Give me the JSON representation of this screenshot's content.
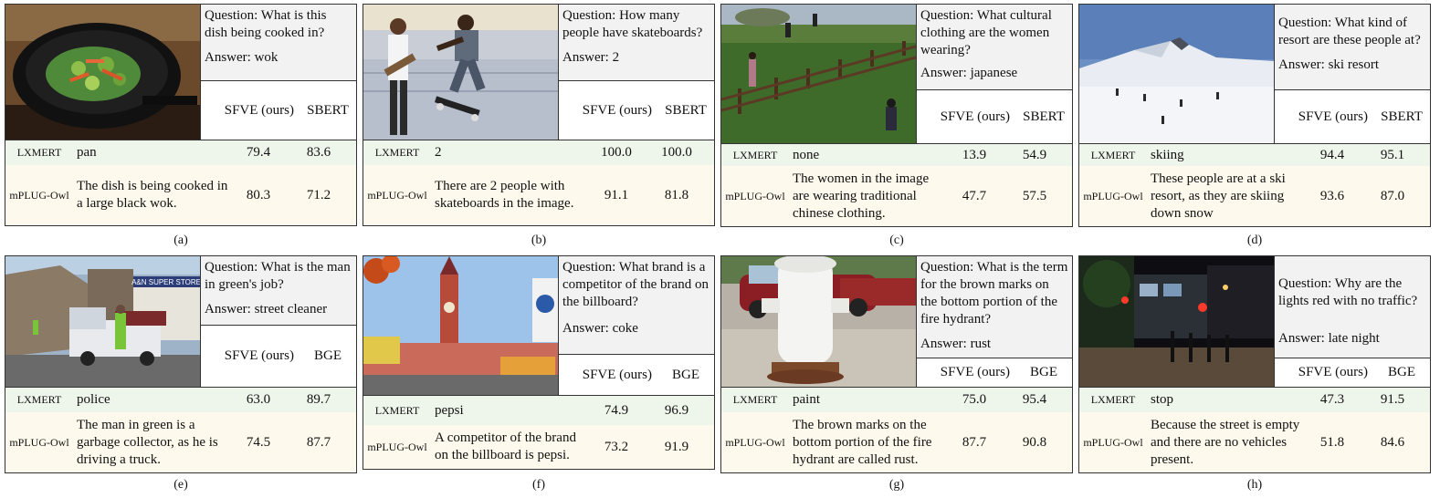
{
  "panels": [
    {
      "caption": "(a)",
      "question": "Question: What is this dish being cooked in?",
      "answer": "Answer: wok",
      "metric1": "SFVE (ours)",
      "metric2": "SBERT",
      "rows": [
        {
          "model": "LXMERT",
          "answer": "pan",
          "v1": "79.4",
          "v2": "83.6"
        },
        {
          "model": "mPLUG-Owl",
          "answer": "The dish is being cooked in a large black wok.",
          "v1": "80.3",
          "v2": "71.2"
        }
      ],
      "photo": "wok-with-vegetables-photo"
    },
    {
      "caption": "(b)",
      "question": "Question: How many people have skateboards?",
      "answer": "Answer: 2",
      "metric1": "SFVE (ours)",
      "metric2": "SBERT",
      "rows": [
        {
          "model": "LXMERT",
          "answer": "2",
          "v1": "100.0",
          "v2": "100.0"
        },
        {
          "model": "mPLUG-Owl",
          "answer": "There are 2 people with skateboards in the image.",
          "v1": "91.1",
          "v2": "81.8"
        }
      ],
      "photo": "skateboarders-photo"
    },
    {
      "caption": "(c)",
      "question": "Question: What cultural clothing are the women wearing?",
      "answer": "Answer: japanese",
      "metric1": "SFVE (ours)",
      "metric2": "SBERT",
      "rows": [
        {
          "model": "LXMERT",
          "answer": "none",
          "v1": "13.9",
          "v2": "54.9"
        },
        {
          "model": "mPLUG-Owl",
          "answer": "The women in the image are wearing traditional chinese clothing.",
          "v1": "47.7",
          "v2": "57.5"
        }
      ],
      "photo": "virtual-world-field-photo"
    },
    {
      "caption": "(d)",
      "question": "Question: What kind of resort are these people at?",
      "answer": "Answer: ski resort",
      "metric1": "SFVE (ours)",
      "metric2": "SBERT",
      "rows": [
        {
          "model": "LXMERT",
          "answer": "skiing",
          "v1": "94.4",
          "v2": "95.1"
        },
        {
          "model": "mPLUG-Owl",
          "answer": "These people are at a ski resort, as they are skiing down snow",
          "v1": "93.6",
          "v2": "87.0"
        }
      ],
      "photo": "snowy-mountain-photo"
    },
    {
      "caption": "(e)",
      "question": "Question: What is the man in green's job?",
      "answer": "Answer: street cleaner",
      "metric1": "SFVE (ours)",
      "metric2": "BGE",
      "rows": [
        {
          "model": "LXMERT",
          "answer": "police",
          "v1": "63.0",
          "v2": "89.7"
        },
        {
          "model": "mPLUG-Owl",
          "answer": "The man in green is a garbage collector, as he is driving a truck.",
          "v1": "74.5",
          "v2": "87.7"
        }
      ],
      "photo": "street-truck-photo",
      "sign": "A&N SUPER STORE"
    },
    {
      "caption": "(f)",
      "question": "Question: What brand is a competitor of the brand on the billboard?",
      "answer": "Answer: coke",
      "metric1": "SFVE (ours)",
      "metric2": "BGE",
      "rows": [
        {
          "model": "LXMERT",
          "answer": "pepsi",
          "v1": "74.9",
          "v2": "96.9"
        },
        {
          "model": "mPLUG-Owl",
          "answer": "A competitor of the brand on the billboard is pepsi.",
          "v1": "73.2",
          "v2": "91.9"
        }
      ],
      "photo": "clock-tower-photo"
    },
    {
      "caption": "(g)",
      "question": "Question: What is the term for the brown marks on the bottom portion of the fire hydrant?",
      "answer": "Answer: rust",
      "metric1": "SFVE (ours)",
      "metric2": "BGE",
      "rows": [
        {
          "model": "LXMERT",
          "answer": "paint",
          "v1": "75.0",
          "v2": "95.4"
        },
        {
          "model": "mPLUG-Owl",
          "answer": "The brown marks on the bottom portion of the fire hydrant are called rust.",
          "v1": "87.7",
          "v2": "90.8"
        }
      ],
      "photo": "fire-hydrant-photo"
    },
    {
      "caption": "(h)",
      "question": "Question: Why are the lights red with no traffic?",
      "answer": "Answer: late night",
      "metric1": "SFVE (ours)",
      "metric2": "BGE",
      "rows": [
        {
          "model": "LXMERT",
          "answer": "stop",
          "v1": "47.3",
          "v2": "91.5"
        },
        {
          "model": "mPLUG-Owl",
          "answer": "Because the street is empty and there are no vehicles present.",
          "v1": "51.8",
          "v2": "84.6"
        }
      ],
      "photo": "night-street-photo"
    }
  ]
}
